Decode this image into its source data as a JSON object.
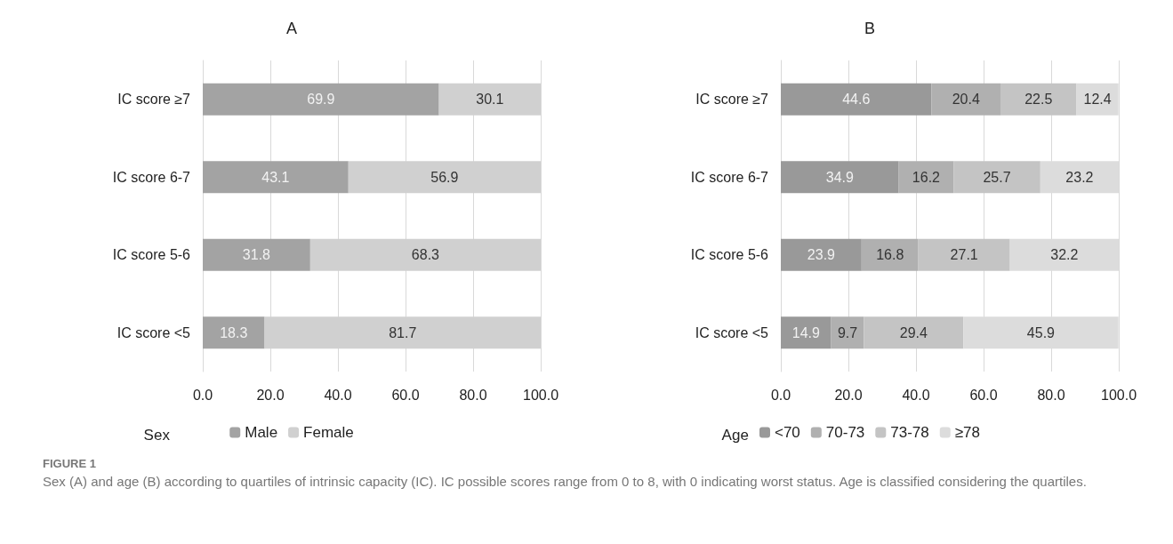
{
  "chart_data": [
    {
      "type": "bar",
      "title": "A",
      "orientation": "horizontal",
      "stacked": true,
      "data_labels": true,
      "grid": "x",
      "legend": "bottom",
      "legend_title": "Sex",
      "categories": [
        "IC score ≥7",
        "IC score 6-7",
        "IC score 5-6",
        "IC score <5"
      ],
      "series": [
        {
          "name": "Male",
          "color": "#a3a3a3",
          "values": [
            69.9,
            43.1,
            31.8,
            18.3
          ]
        },
        {
          "name": "Female",
          "color": "#d0d0d0",
          "values": [
            30.1,
            56.9,
            68.3,
            81.7
          ]
        }
      ],
      "xlim": [
        0,
        100
      ],
      "xticks": [
        {
          "value": 0,
          "label": "0.0"
        },
        {
          "value": 20,
          "label": "20.0"
        },
        {
          "value": 40,
          "label": "40.0"
        },
        {
          "value": 60,
          "label": "60.0"
        },
        {
          "value": 80,
          "label": "80.0"
        },
        {
          "value": 100,
          "label": "100.0"
        }
      ],
      "annotations": [
        "FIGURE 1",
        "Sex (A) and age (B) according to quartiles of intrinsic capacity (IC). IC possible scores range from 0 to 8, with 0 indicating worst status. Age is classified considering the quartiles."
      ]
    },
    {
      "type": "bar",
      "title": "B",
      "orientation": "horizontal",
      "stacked": true,
      "data_labels": true,
      "grid": "x",
      "legend": "bottom",
      "legend_title": "Age",
      "categories": [
        "IC score ≥7",
        "IC score 6-7",
        "IC score 5-6",
        "IC score <5"
      ],
      "series": [
        {
          "name": "<70",
          "color": "#999999",
          "values": [
            44.6,
            34.9,
            23.9,
            14.9
          ]
        },
        {
          "name": "70-73",
          "color": "#b0b0b0",
          "values": [
            20.4,
            16.2,
            16.8,
            9.7
          ]
        },
        {
          "name": "73-78",
          "color": "#c4c4c4",
          "values": [
            22.5,
            25.7,
            27.1,
            29.4
          ]
        },
        {
          "name": "≥78",
          "color": "#dcdcdc",
          "values": [
            12.4,
            23.2,
            32.2,
            45.9
          ]
        }
      ],
      "xlim": [
        0,
        100
      ],
      "xticks": [
        {
          "value": 0,
          "label": "0.0"
        },
        {
          "value": 20,
          "label": "20.0"
        },
        {
          "value": 40,
          "label": "40.0"
        },
        {
          "value": 60,
          "label": "60.0"
        },
        {
          "value": 80,
          "label": "80.0"
        },
        {
          "value": 100,
          "label": "100.0"
        }
      ]
    }
  ]
}
